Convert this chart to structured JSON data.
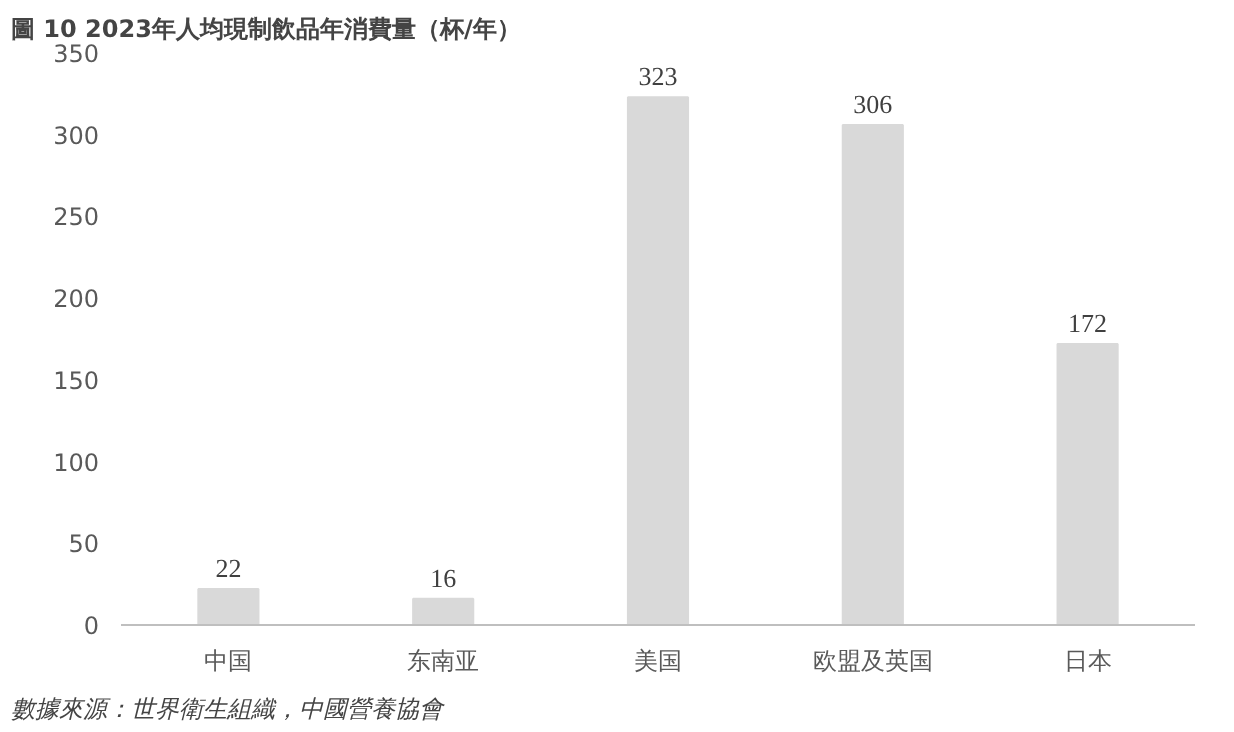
{
  "chart_data": {
    "type": "bar",
    "title": "圖 10 2023年人均現制飲品年消費量（杯/年）",
    "categories": [
      "中国",
      "东南亚",
      "美国",
      "欧盟及英国",
      "日本"
    ],
    "values": [
      22,
      16,
      323,
      306,
      172
    ],
    "color": "#d9d9d9",
    "ylim": [
      0,
      350
    ],
    "yticks": [
      0,
      50,
      100,
      150,
      200,
      250,
      300,
      350
    ],
    "grid": false,
    "data_labels": true,
    "annotations": [
      "數據來源：世界衛生組織，中國營養協會"
    ]
  }
}
